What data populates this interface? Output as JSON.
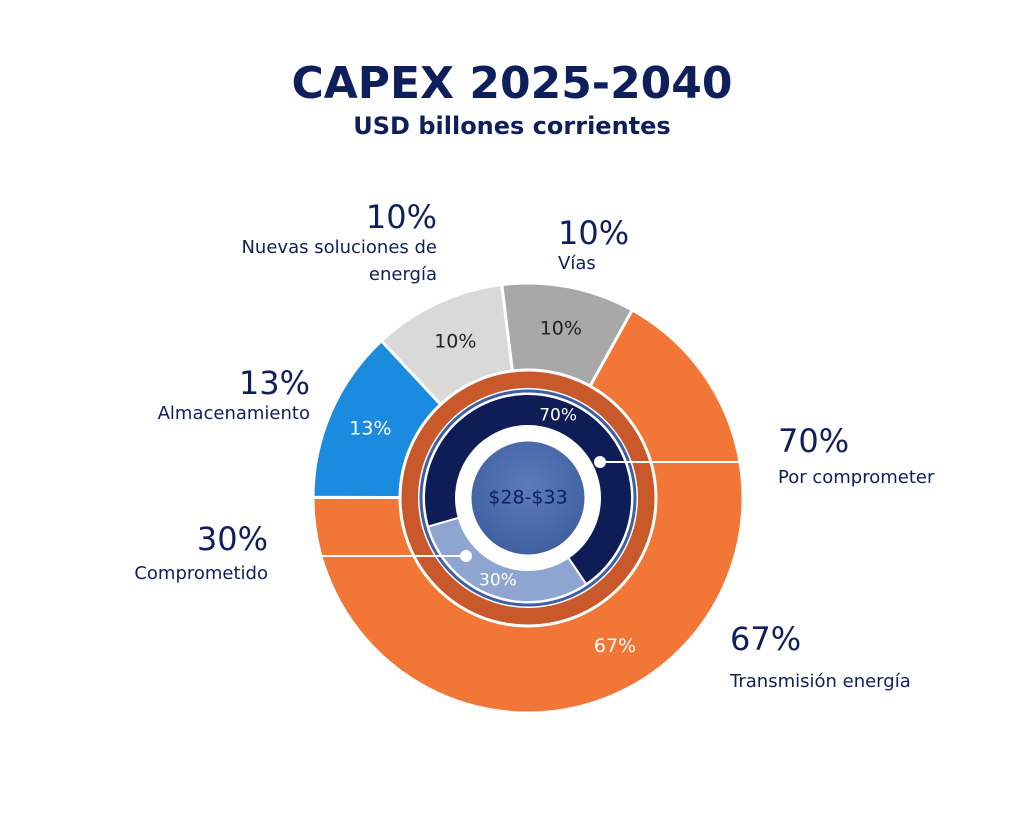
{
  "chart_data": {
    "type": "nested-donut",
    "title": "CAPEX 2025-2040",
    "subtitle": "USD billones corrientes",
    "center_label": "$28-$33",
    "rings": [
      {
        "categories": [
          "Transmisión energía",
          "Almacenamiento",
          "Nuevas soluciones de energía",
          "Vías"
        ],
        "values": [
          67,
          13,
          10,
          10
        ],
        "value_labels": [
          "67%",
          "13%",
          "10%",
          "10%"
        ],
        "colors": [
          "#f27636",
          "#1b8be0",
          "#d9d9d9",
          "#a8a8a8"
        ]
      },
      {
        "categories": [
          "Por comprometer",
          "Comprometido"
        ],
        "values": [
          70,
          30
        ],
        "value_labels": [
          "70%",
          "30%"
        ],
        "colors": [
          "#0e1d55",
          "#8ea5d2"
        ]
      }
    ]
  }
}
